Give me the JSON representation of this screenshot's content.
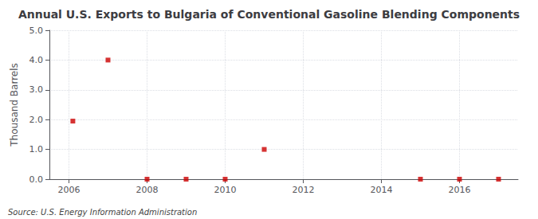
{
  "chart_data": {
    "type": "scatter",
    "title": "Annual U.S. Exports to Bulgaria of Conventional Gasoline Blending Components",
    "ylabel": "Thousand Barrels",
    "annotations": [
      "Source: U.S. Energy Information Administration"
    ],
    "x": [
      2006.1,
      2007,
      2008,
      2009,
      2010,
      2011,
      2015,
      2016,
      2017
    ],
    "values": [
      1.95,
      4.0,
      0.0,
      0.0,
      0.0,
      1.0,
      0.0,
      0.0,
      0.0
    ],
    "color": "#cc0000",
    "marker": "square",
    "xlim": [
      2005.5,
      2017.5
    ],
    "xticks": [
      2006,
      2008,
      2010,
      2012,
      2014,
      2016
    ],
    "ylim": [
      0.0,
      5.0
    ],
    "yticks": [
      {
        "value": 0.0,
        "label": "0.0"
      },
      {
        "value": 1.0,
        "label": "1.0"
      },
      {
        "value": 2.0,
        "label": "2.0"
      },
      {
        "value": 3.0,
        "label": "3.0"
      },
      {
        "value": 4.0,
        "label": "4.0"
      },
      {
        "value": 5.0,
        "label": "5.0"
      }
    ],
    "grid": true
  }
}
